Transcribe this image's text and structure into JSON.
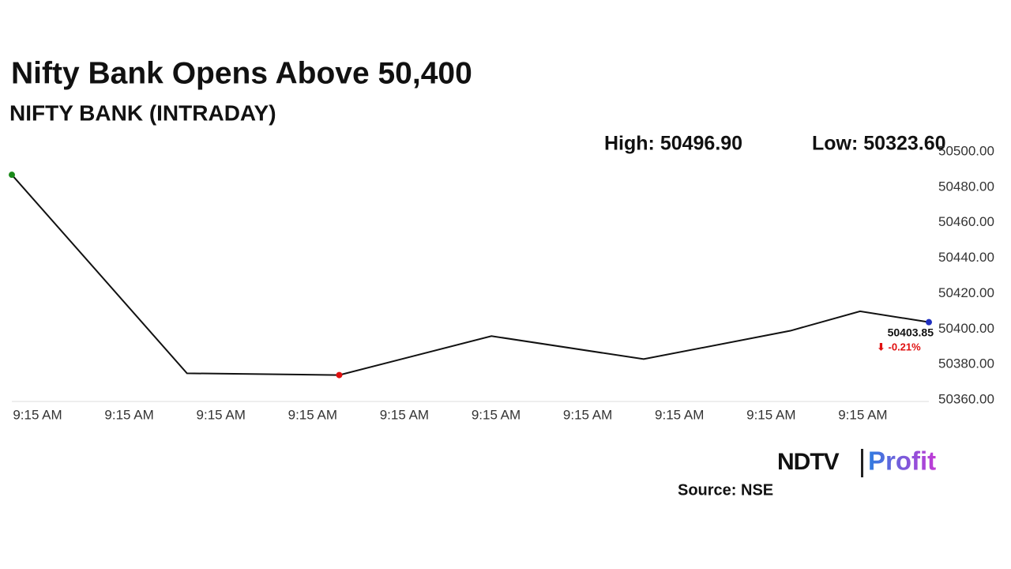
{
  "chart_data": {
    "type": "line",
    "title": "Nifty Bank Opens Above 50,400",
    "subtitle": "NIFTY BANK (INTRADAY)",
    "annotations": {
      "high": "High: 50496.90",
      "low": "Low: 50323.60",
      "change": "⬇ -0.21%"
    },
    "x": [
      -0.28,
      1.63,
      3.29,
      4.95,
      6.61,
      8.21,
      8.97,
      9.72
    ],
    "series": [
      {
        "name": "NIFTY BANK",
        "color": "#111111",
        "values": [
          50487,
          50375,
          50374,
          50396,
          50383,
          50399,
          50410,
          50403.85
        ],
        "value_labels": [
          null,
          null,
          null,
          null,
          null,
          null,
          null,
          "50403.85"
        ],
        "point_colors": [
          "#1a8a1a",
          null,
          "#e01010",
          null,
          null,
          null,
          null,
          "#1f2fbf"
        ]
      }
    ],
    "xlim": [
      -0.28,
      9.72
    ],
    "xticks": [
      {
        "value": 0,
        "label": "9:15 AM"
      },
      {
        "value": 1,
        "label": "9:15 AM"
      },
      {
        "value": 2,
        "label": "9:15 AM"
      },
      {
        "value": 3,
        "label": "9:15 AM"
      },
      {
        "value": 4,
        "label": "9:15 AM"
      },
      {
        "value": 5,
        "label": "9:15 AM"
      },
      {
        "value": 6,
        "label": "9:15 AM"
      },
      {
        "value": 7,
        "label": "9:15 AM"
      },
      {
        "value": 8,
        "label": "9:15 AM"
      },
      {
        "value": 9,
        "label": "9:15 AM"
      }
    ],
    "ylim": [
      50360,
      50500
    ],
    "yticks": [
      {
        "value": 50360,
        "label": "50360.00"
      },
      {
        "value": 50380,
        "label": "50380.00"
      },
      {
        "value": 50400,
        "label": "50400.00"
      },
      {
        "value": 50420,
        "label": "50420.00"
      },
      {
        "value": 50440,
        "label": "50440.00"
      },
      {
        "value": 50460,
        "label": "50460.00"
      },
      {
        "value": 50480,
        "label": "50480.00"
      },
      {
        "value": 50500,
        "label": "50500.00"
      }
    ],
    "grid": false,
    "logo": {
      "left": "NDTV",
      "right": "Profit"
    },
    "source": "Source: NSE"
  }
}
